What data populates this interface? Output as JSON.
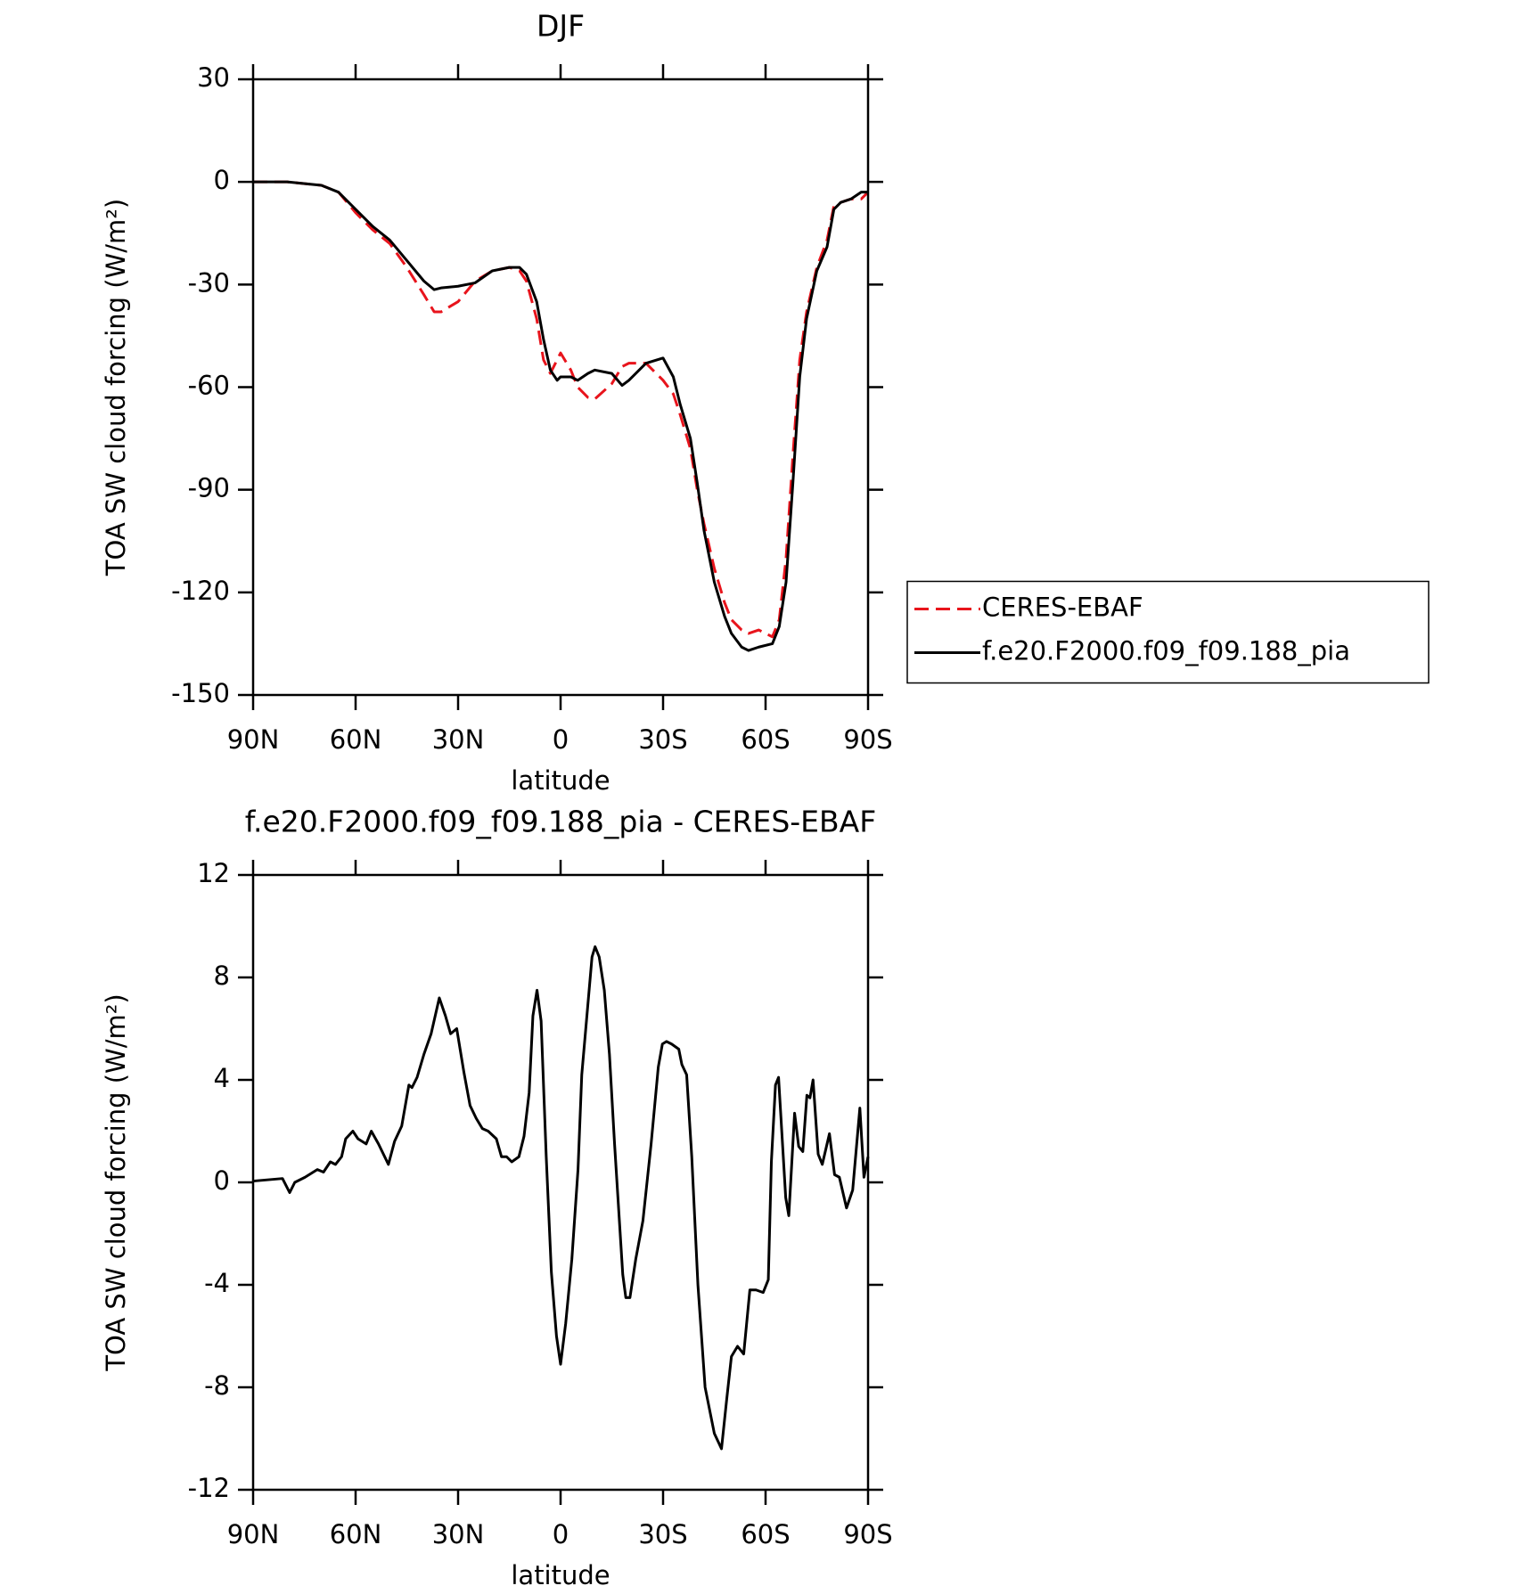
{
  "chart_data": [
    {
      "type": "line",
      "title": "DJF",
      "xlabel": "latitude",
      "ylabel": "TOA SW cloud forcing (W/m²)",
      "x": [
        90,
        80,
        70,
        65,
        60,
        55,
        50,
        45,
        40,
        37,
        35,
        30,
        25,
        20,
        15,
        12,
        10,
        7,
        5,
        3,
        1,
        0,
        -3,
        -5,
        -8,
        -10,
        -15,
        -18,
        -20,
        -25,
        -30,
        -33,
        -35,
        -38,
        -40,
        -42,
        -45,
        -48,
        -50,
        -53,
        -55,
        -58,
        -62,
        -64,
        -66,
        -68,
        -70,
        -72,
        -75,
        -78,
        -80,
        -82,
        -85,
        -88,
        -90
      ],
      "series": [
        {
          "name": "CERES-EBAF",
          "color": "#e8141c",
          "style": "dashed",
          "values": [
            0,
            0,
            -1,
            -3,
            -9,
            -14,
            -18,
            -25,
            -33,
            -38,
            -38,
            -35,
            -29,
            -26,
            -25,
            -26,
            -29,
            -40,
            -52,
            -56,
            -52,
            -50,
            -55,
            -60,
            -63,
            -63.5,
            -59,
            -54,
            -53,
            -53,
            -58,
            -62,
            -68,
            -78,
            -90,
            -100,
            -113,
            -123,
            -128,
            -131,
            -132,
            -131,
            -133,
            -128,
            -110,
            -80,
            -52,
            -38,
            -25,
            -17,
            -7,
            -6,
            -5,
            -5,
            -3
          ]
        },
        {
          "name": "f.e20.F2000.f09_f09.188_pia",
          "color": "#000000",
          "style": "solid",
          "values": [
            0,
            0,
            -1,
            -3,
            -8,
            -13,
            -17,
            -23,
            -29,
            -31.5,
            -31,
            -30.5,
            -29.5,
            -26,
            -25,
            -25,
            -27,
            -35,
            -46,
            -55,
            -58,
            -57,
            -57,
            -58,
            -56,
            -55,
            -56,
            -59.5,
            -58,
            -53,
            -51.5,
            -57,
            -65,
            -75,
            -88,
            -102,
            -117,
            -127,
            -132,
            -136,
            -137,
            -136,
            -135,
            -130,
            -117,
            -88,
            -57,
            -40,
            -26,
            -19,
            -8,
            -6,
            -5,
            -3,
            -3
          ]
        }
      ],
      "xlim": [
        90,
        -90
      ],
      "xticks": [
        {
          "value": 90,
          "label": "90N"
        },
        {
          "value": 60,
          "label": "60N"
        },
        {
          "value": 30,
          "label": "30N"
        },
        0,
        {
          "value": -30,
          "label": "30S"
        },
        {
          "value": -60,
          "label": "60S"
        },
        {
          "value": -90,
          "label": "90S"
        }
      ],
      "ylim": [
        -150,
        30
      ],
      "yticks": [
        -150,
        -120,
        -90,
        -60,
        -30,
        0,
        30
      ],
      "legend": "right"
    },
    {
      "type": "line",
      "title": "f.e20.F2000.f09_f09.188_pia - CERES-EBAF",
      "xlabel": "latitude",
      "ylabel": "TOA SW cloud forcing (W/m²)",
      "x": [
        90,
        81.4,
        79.3,
        77.8,
        74.8,
        71.2,
        69.4,
        67.4,
        65.9,
        64.1,
        62.9,
        60.8,
        59.3,
        56.9,
        55.4,
        53.3,
        50.4,
        48.6,
        46.5,
        44.4,
        43.5,
        42,
        40,
        37.9,
        35.5,
        33.7,
        32.2,
        30.4,
        28.3,
        26.5,
        24.7,
        22.9,
        21.2,
        18.8,
        17.3,
        15.8,
        14.3,
        12.2,
        10.7,
        9.2,
        8.1,
        6.9,
        5.7,
        4.2,
        2.7,
        1.2,
        0,
        -1.5,
        -3.3,
        -5.1,
        -6.2,
        -7.7,
        -9.2,
        -10.1,
        -11.3,
        -12.8,
        -14.3,
        -15.8,
        -18.2,
        -19.1,
        -20.3,
        -22,
        -24.1,
        -26.5,
        -28.6,
        -29.8,
        -31,
        -32.5,
        -34.6,
        -35.5,
        -36.9,
        -38.4,
        -40.2,
        -42.3,
        -45,
        -47.1,
        -48.6,
        -50,
        -51.8,
        -53.6,
        -55.4,
        -57.2,
        -59.3,
        -60.8,
        -61.7,
        -62.9,
        -63.8,
        -65.9,
        -66.8,
        -68.5,
        -69.7,
        -70.9,
        -72.1,
        -73,
        -73.9,
        -75.4,
        -76.6,
        -78.7,
        -80.2,
        -81.6,
        -83.7,
        -85.5,
        -87.6,
        -88.8,
        -90
      ],
      "color": "#000000",
      "values": [
        0.05,
        0.15,
        -0.4,
        0,
        0.2,
        0.5,
        0.4,
        0.8,
        0.7,
        1,
        1.7,
        2,
        1.7,
        1.5,
        2,
        1.5,
        0.7,
        1.6,
        2.2,
        3.8,
        3.7,
        4.1,
        5,
        5.8,
        7.2,
        6.5,
        5.8,
        6,
        4.3,
        3,
        2.5,
        2.1,
        2,
        1.7,
        1,
        1,
        0.8,
        1,
        1.8,
        3.5,
        6.5,
        7.5,
        6.3,
        1,
        -3.5,
        -6,
        -7.1,
        -5.5,
        -3,
        0.5,
        4.2,
        6.5,
        8.8,
        9.2,
        8.8,
        7.5,
        5,
        1.5,
        -3.6,
        -4.5,
        -4.5,
        -3,
        -1.5,
        1.5,
        4.5,
        5.4,
        5.5,
        5.4,
        5.2,
        4.6,
        4.2,
        1,
        -4,
        -8,
        -9.8,
        -10.4,
        -8.5,
        -6.8,
        -6.4,
        -6.7,
        -4.2,
        -4.2,
        -4.3,
        -3.8,
        0.8,
        3.8,
        4.1,
        -0.6,
        -1.3,
        2.7,
        1.4,
        1.2,
        3.4,
        3.3,
        4,
        1.1,
        0.7,
        1.9,
        0.3,
        0.2,
        -1,
        -0.3,
        2.9,
        0.2,
        1
      ],
      "xlim": [
        90,
        -90
      ],
      "xticks": [
        {
          "value": 90,
          "label": "90N"
        },
        {
          "value": 60,
          "label": "60N"
        },
        {
          "value": 30,
          "label": "30N"
        },
        0,
        {
          "value": -30,
          "label": "30S"
        },
        {
          "value": -60,
          "label": "60S"
        },
        {
          "value": -90,
          "label": "90S"
        }
      ],
      "ylim": [
        -12,
        12
      ],
      "yticks": [
        -12,
        -8,
        -4,
        0,
        4,
        8,
        12
      ]
    }
  ]
}
